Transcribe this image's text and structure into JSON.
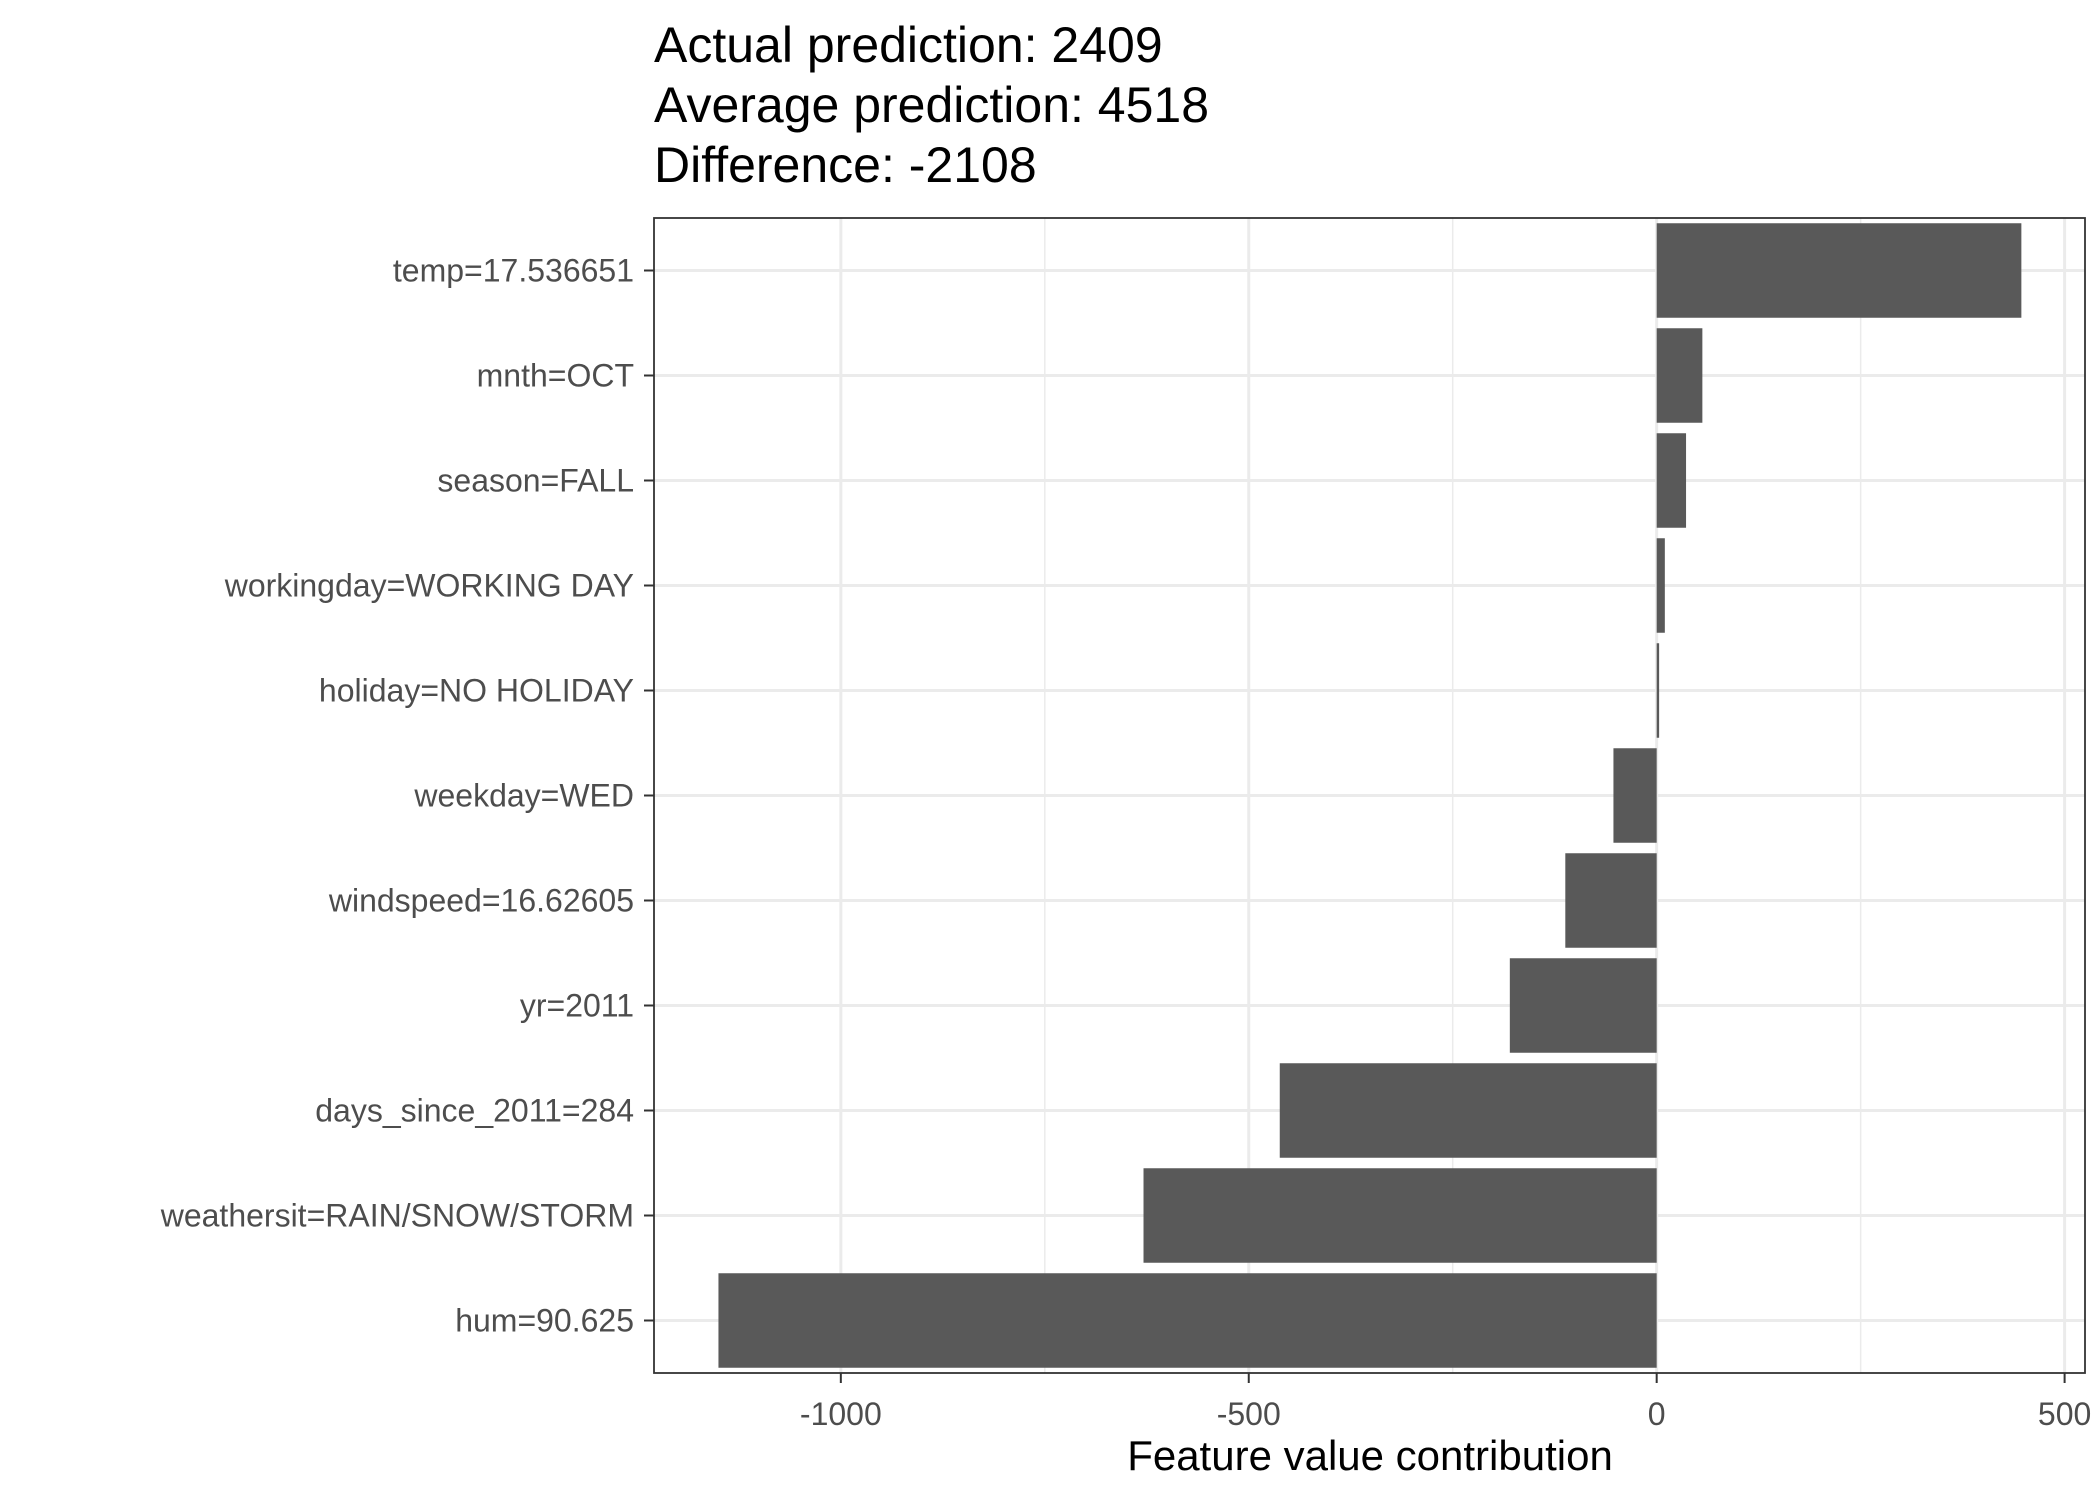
{
  "chart_data": {
    "type": "bar",
    "orientation": "horizontal",
    "title_lines": [
      "Actual prediction: 2409",
      "Average prediction: 4518",
      "Difference: -2108"
    ],
    "xlabel": "Feature value contribution",
    "ylabel": "",
    "xlim": [
      -1229,
      525
    ],
    "xticks": [
      -1000,
      -500,
      0,
      500
    ],
    "xtick_labels": [
      "-1000",
      "-500",
      "0",
      "500"
    ],
    "minor_gridlines": [
      -750,
      -250,
      250
    ],
    "grid": true,
    "categories": [
      "temp=17.536651",
      "mnth=OCT",
      "season=FALL",
      "workingday=WORKING DAY",
      "holiday=NO HOLIDAY",
      "weekday=WED",
      "windspeed=16.62605",
      "yr=2011",
      "days_since_2011=284",
      "weathersit=RAIN/SNOW/STORM",
      "hum=90.625"
    ],
    "values": [
      447,
      56,
      36,
      10,
      3,
      -53,
      -112,
      -180,
      -462,
      -629,
      -1150
    ],
    "bar_color": "#595959"
  }
}
